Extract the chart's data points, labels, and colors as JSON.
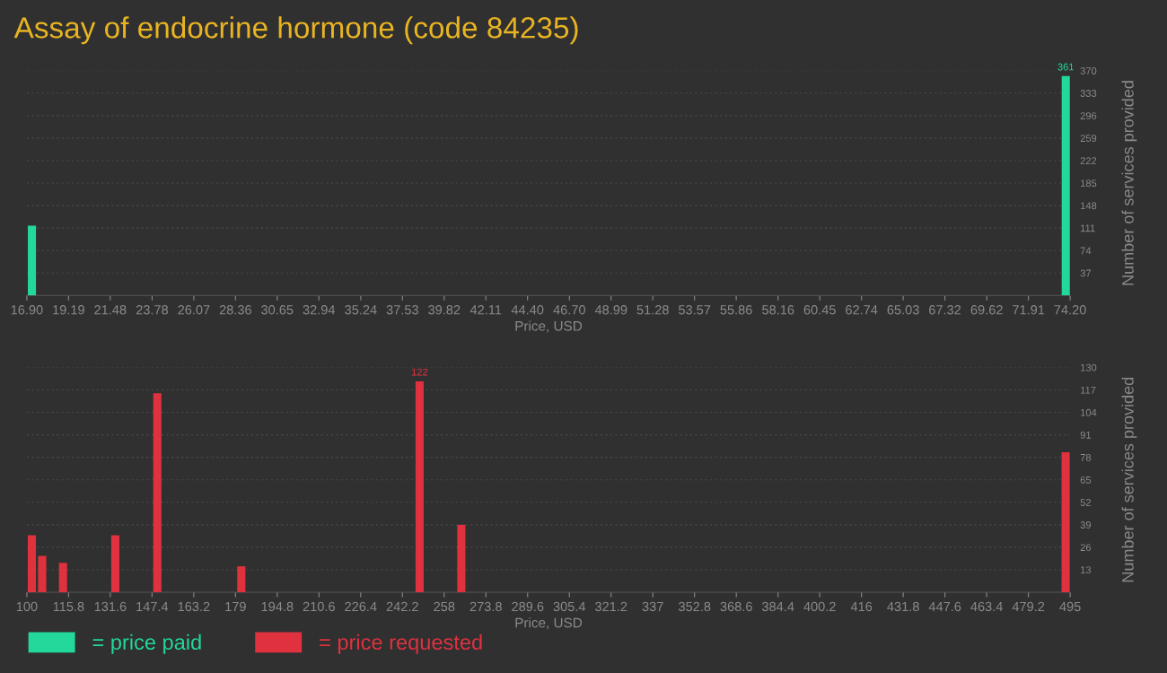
{
  "chart_data": [
    {
      "type": "bar",
      "title": "Assay of endocrine hormone (code 84235)",
      "xlabel": "Price, USD",
      "ylabel": "Number of services provided",
      "x": [
        17.18,
        73.96
      ],
      "series": [
        {
          "name": "= price paid",
          "color": "#22d89a",
          "values": [
            115,
            361
          ],
          "value_labels": [
            null,
            "361"
          ]
        }
      ],
      "xlim": [
        16.9,
        74.2
      ],
      "xticks": [
        {
          "value": 16.9,
          "label": "16.90"
        },
        19.19,
        21.48,
        23.78,
        26.07,
        28.36,
        30.65,
        32.94,
        35.24,
        37.53,
        39.82,
        42.11,
        {
          "value": 44.4,
          "label": "44.40"
        },
        {
          "value": 46.7,
          "label": "46.70"
        },
        48.99,
        51.28,
        53.57,
        55.86,
        58.16,
        60.45,
        62.74,
        65.03,
        67.32,
        69.62,
        71.91,
        {
          "value": 74.2,
          "label": "74.20"
        }
      ],
      "ylim": [
        0,
        370
      ],
      "yticks": [
        37,
        74,
        111,
        148,
        185,
        222,
        259,
        296,
        333,
        370
      ],
      "grid": "y",
      "legend": "bottom left"
    },
    {
      "type": "bar",
      "xlabel": "Price, USD",
      "ylabel": "Number of services provided",
      "x": [
        101.9,
        105.8,
        113.7,
        133.5,
        149.4,
        181.2,
        248.7,
        264.5,
        493.3
      ],
      "series": [
        {
          "name": "= price requested",
          "color": "#e0313f",
          "values": [
            33,
            21,
            17,
            33,
            115,
            15,
            122,
            39,
            81
          ],
          "value_labels": [
            null,
            null,
            null,
            null,
            null,
            null,
            "122",
            null,
            null
          ]
        }
      ],
      "xlim": [
        100,
        495
      ],
      "xticks": [
        100,
        115.8,
        131.6,
        147.4,
        163.2,
        179,
        194.8,
        210.6,
        226.4,
        242.2,
        258,
        273.8,
        289.6,
        305.4,
        321.2,
        337,
        352.8,
        368.6,
        384.4,
        400.2,
        416,
        431.8,
        447.6,
        463.4,
        479.2,
        495
      ],
      "ylim": [
        0,
        130
      ],
      "yticks": [
        13,
        26,
        39,
        52,
        65,
        78,
        91,
        104,
        117,
        130
      ],
      "grid": "y",
      "legend": "bottom left"
    }
  ]
}
